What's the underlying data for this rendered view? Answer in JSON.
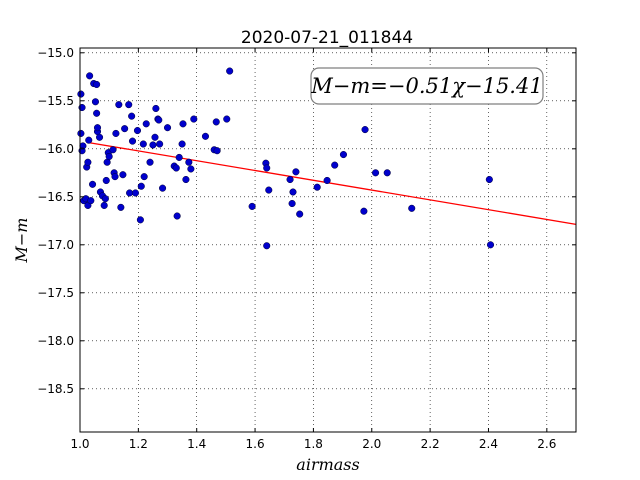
{
  "chart_data": {
    "type": "scatter",
    "title": "2020-07-21_011844",
    "xlabel": "airmass",
    "ylabel": "M−m",
    "xlim": [
      1.0,
      2.7
    ],
    "ylim": [
      -18.95,
      -14.95
    ],
    "y_inverted": true,
    "grid": true,
    "grid_style": "dotted",
    "x_ticks": [
      "1.0",
      "1.2",
      "1.4",
      "1.6",
      "1.8",
      "2.0",
      "2.2",
      "2.4",
      "2.6"
    ],
    "y_ticks": [
      "−15.0",
      "−15.5",
      "−16.0",
      "−16.5",
      "−17.0",
      "−17.5",
      "−18.0",
      "−18.5"
    ],
    "annotation": "M−m=−0.51χ−15.41",
    "fit": {
      "slope": -0.51,
      "intercept": -15.41,
      "color": "#ff0000"
    },
    "point_color": "#0000cc",
    "points": [
      [
        1.003,
        -15.43
      ],
      [
        1.007,
        -15.57
      ],
      [
        1.003,
        -15.84
      ],
      [
        1.01,
        -15.97
      ],
      [
        1.007,
        -16.02
      ],
      [
        1.013,
        -16.54
      ],
      [
        1.02,
        -16.52
      ],
      [
        1.027,
        -16.59
      ],
      [
        1.023,
        -16.19
      ],
      [
        1.027,
        -16.14
      ],
      [
        1.03,
        -15.91
      ],
      [
        1.033,
        -15.24
      ],
      [
        1.037,
        -16.54
      ],
      [
        1.043,
        -16.37
      ],
      [
        1.047,
        -15.32
      ],
      [
        1.053,
        -15.51
      ],
      [
        1.057,
        -15.33
      ],
      [
        1.057,
        -15.63
      ],
      [
        1.06,
        -15.82
      ],
      [
        1.06,
        -15.78
      ],
      [
        1.067,
        -15.88
      ],
      [
        1.07,
        -16.45
      ],
      [
        1.077,
        -16.49
      ],
      [
        1.083,
        -16.59
      ],
      [
        1.087,
        -16.52
      ],
      [
        1.09,
        -16.33
      ],
      [
        1.093,
        -16.14
      ],
      [
        1.097,
        -16.04
      ],
      [
        1.1,
        -16.08
      ],
      [
        1.113,
        -16.01
      ],
      [
        1.117,
        -16.25
      ],
      [
        1.12,
        -16.29
      ],
      [
        1.123,
        -15.84
      ],
      [
        1.133,
        -15.54
      ],
      [
        1.14,
        -16.61
      ],
      [
        1.147,
        -16.27
      ],
      [
        1.153,
        -15.79
      ],
      [
        1.167,
        -15.54
      ],
      [
        1.17,
        -16.46
      ],
      [
        1.177,
        -15.66
      ],
      [
        1.18,
        -15.92
      ],
      [
        1.19,
        -16.46
      ],
      [
        1.197,
        -15.81
      ],
      [
        1.207,
        -16.74
      ],
      [
        1.21,
        -16.39
      ],
      [
        1.217,
        -15.95
      ],
      [
        1.22,
        -16.29
      ],
      [
        1.227,
        -15.74
      ],
      [
        1.24,
        -16.14
      ],
      [
        1.25,
        -15.96
      ],
      [
        1.257,
        -15.88
      ],
      [
        1.26,
        -15.58
      ],
      [
        1.267,
        -15.69
      ],
      [
        1.27,
        -15.7
      ],
      [
        1.273,
        -15.95
      ],
      [
        1.283,
        -16.41
      ],
      [
        1.3,
        -15.78
      ],
      [
        1.323,
        -16.18
      ],
      [
        1.33,
        -16.2
      ],
      [
        1.333,
        -16.7
      ],
      [
        1.34,
        -16.09
      ],
      [
        1.35,
        -15.95
      ],
      [
        1.353,
        -15.74
      ],
      [
        1.363,
        -16.32
      ],
      [
        1.373,
        -16.14
      ],
      [
        1.38,
        -16.21
      ],
      [
        1.39,
        -15.69
      ],
      [
        1.43,
        -15.87
      ],
      [
        1.46,
        -16.01
      ],
      [
        1.467,
        -15.72
      ],
      [
        1.47,
        -16.02
      ],
      [
        1.503,
        -15.69
      ],
      [
        1.513,
        -15.19
      ],
      [
        1.59,
        -16.6
      ],
      [
        1.637,
        -16.15
      ],
      [
        1.64,
        -16.2
      ],
      [
        1.64,
        -17.01
      ],
      [
        1.647,
        -16.43
      ],
      [
        1.72,
        -16.32
      ],
      [
        1.727,
        -16.57
      ],
      [
        1.73,
        -16.45
      ],
      [
        1.74,
        -16.24
      ],
      [
        1.753,
        -16.68
      ],
      [
        1.813,
        -16.4
      ],
      [
        1.847,
        -16.33
      ],
      [
        1.873,
        -16.17
      ],
      [
        1.903,
        -16.06
      ],
      [
        1.973,
        -16.65
      ],
      [
        1.977,
        -15.8
      ],
      [
        2.013,
        -16.25
      ],
      [
        2.053,
        -16.25
      ],
      [
        2.137,
        -16.62
      ],
      [
        2.403,
        -16.32
      ],
      [
        2.407,
        -17.0
      ]
    ]
  }
}
